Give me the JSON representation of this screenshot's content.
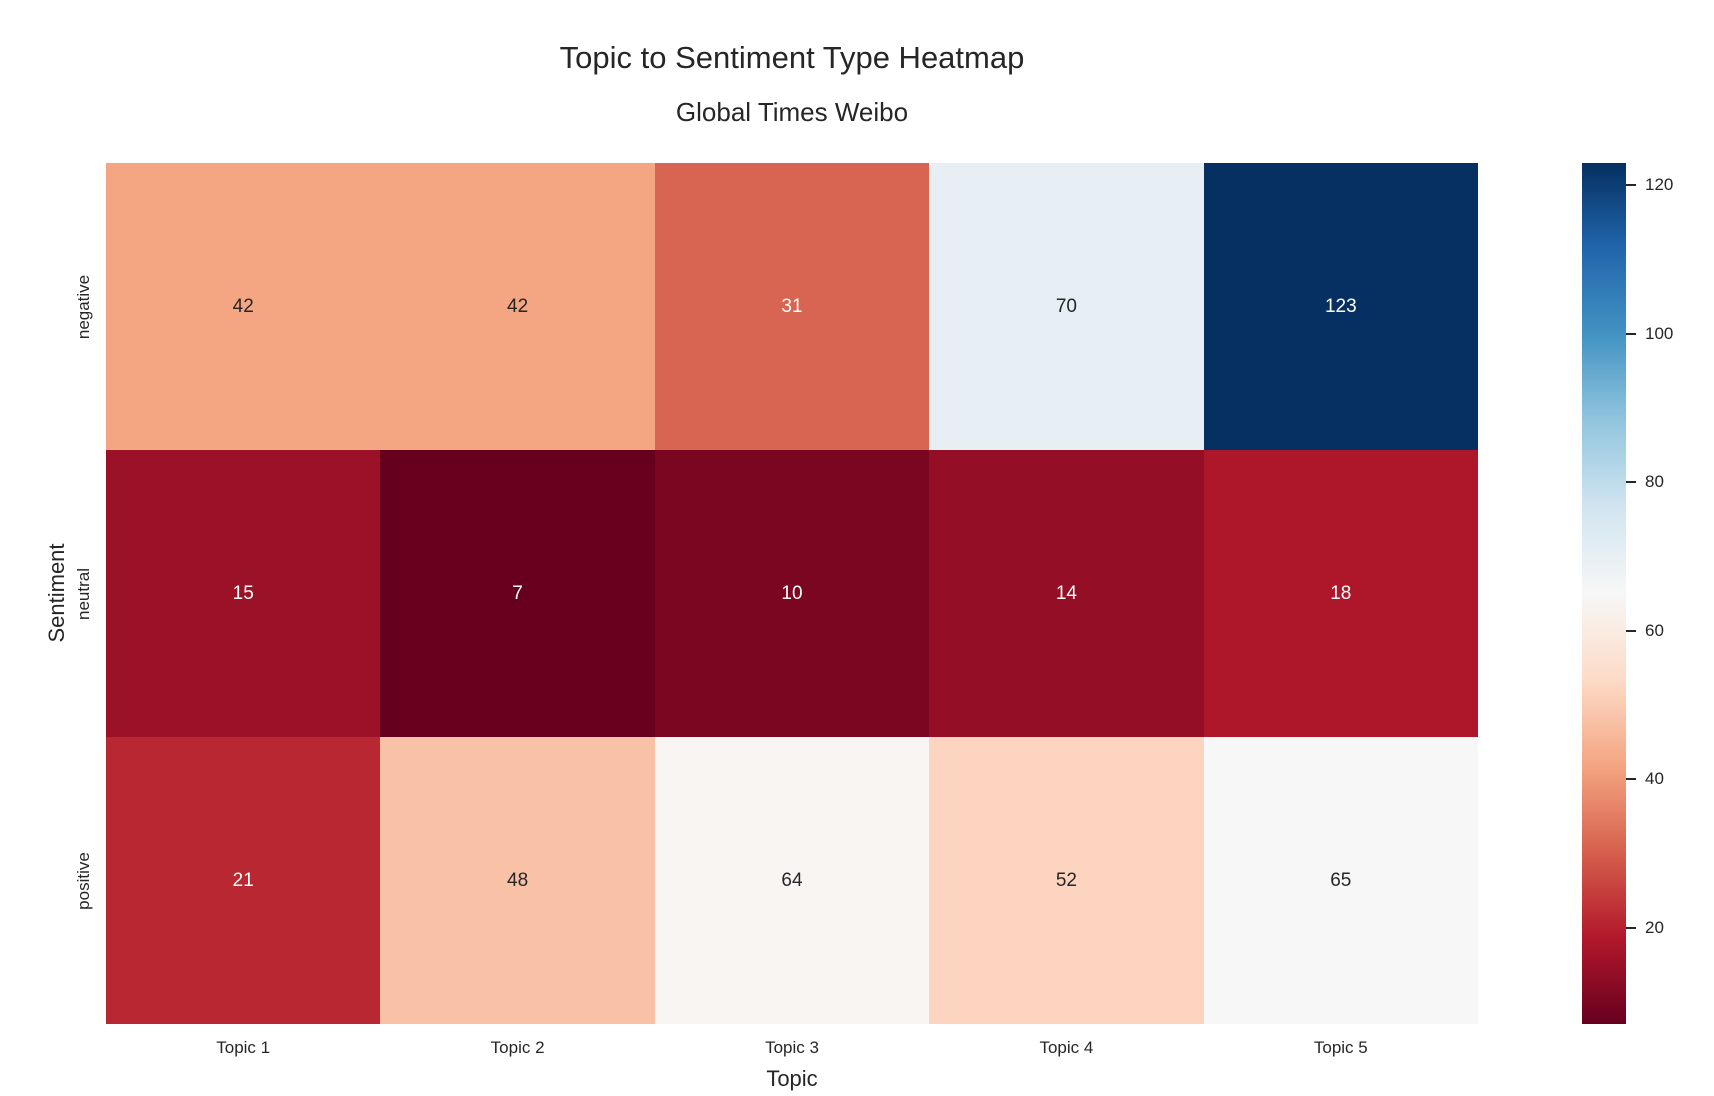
{
  "chart_data": {
    "type": "heatmap",
    "title": "Topic to Sentiment Type Heatmap",
    "subtitle": "Global Times Weibo",
    "xlabel": "Topic",
    "ylabel": "Sentiment",
    "columns": [
      "Topic 1",
      "Topic 2",
      "Topic 3",
      "Topic 4",
      "Topic 5"
    ],
    "rows": [
      "negative",
      "neutral",
      "positive"
    ],
    "values": [
      [
        42,
        42,
        31,
        70,
        123
      ],
      [
        15,
        7,
        10,
        14,
        18
      ],
      [
        21,
        48,
        64,
        52,
        65
      ]
    ],
    "colormap": "RdBu",
    "vmin": 7,
    "vmax": 123,
    "cell_colors": [
      [
        "#f4a683",
        "#f4a683",
        "#d86551",
        "#e7eff4",
        "#053061"
      ],
      [
        "#9b1127",
        "#67001f",
        "#7a0622",
        "#940e26",
        "#ae172a"
      ],
      [
        "#b92732",
        "#f9c2a7",
        "#f8f5f3",
        "#fcd4bf",
        "#f7f7f7"
      ]
    ],
    "cell_text_colors": [
      [
        "#262626",
        "#262626",
        "#ffffff",
        "#262626",
        "#ffffff"
      ],
      [
        "#ffffff",
        "#ffffff",
        "#ffffff",
        "#ffffff",
        "#ffffff"
      ],
      [
        "#ffffff",
        "#262626",
        "#262626",
        "#262626",
        "#262626"
      ]
    ],
    "colorbar": {
      "ticks": [
        20,
        40,
        60,
        80,
        100,
        120
      ],
      "gradient_stops": [
        "#67001f",
        "#b2182b",
        "#d6604d",
        "#f4a582",
        "#fddbc7",
        "#f7f7f7",
        "#d1e5f0",
        "#92c5de",
        "#4393c3",
        "#2166ac",
        "#053061"
      ]
    },
    "text_color": "#262626",
    "background_color": "#ffffff",
    "legend_position": "right-colorbar",
    "grid": false
  }
}
